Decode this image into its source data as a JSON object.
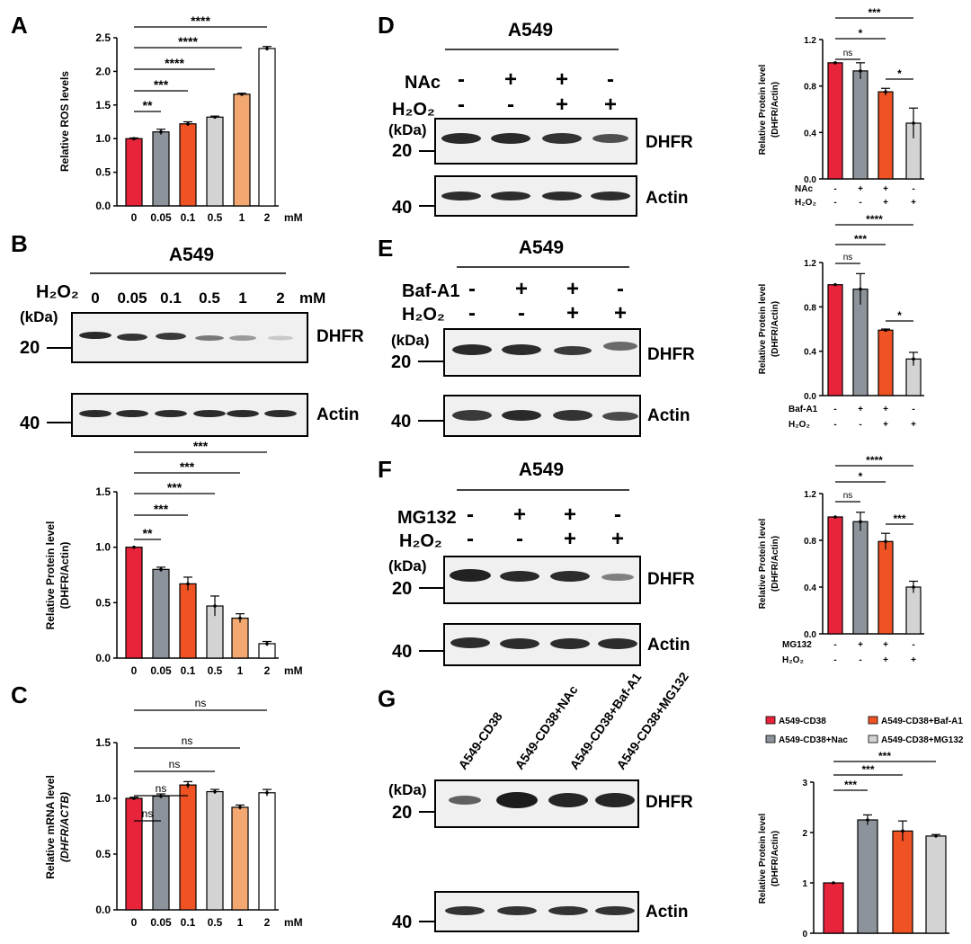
{
  "colors": {
    "red": "#e8243a",
    "gray": "#8d939b",
    "orange": "#ef5324",
    "light": "#d3d3d3",
    "peach": "#f3a872",
    "white": "#ffffff"
  },
  "panels": {
    "A": {
      "label": "A"
    },
    "B": {
      "label": "B",
      "cell": "A549",
      "treatment": "H₂O₂",
      "lanes": [
        "0",
        "0.05",
        "0.1",
        "0.5",
        "1",
        "2"
      ],
      "unit": "mM",
      "kda": "(kDa)",
      "mw_top": "20",
      "mw_bottom": "40",
      "protein_top": "DHFR",
      "protein_bottom": "Actin"
    },
    "C": {
      "label": "C"
    },
    "D": {
      "label": "D",
      "cell": "A549",
      "row1": "NAc",
      "row2": "H₂O₂",
      "row1_signs": [
        "-",
        "+",
        "+",
        "-"
      ],
      "row2_signs": [
        "-",
        "-",
        "+",
        "+"
      ],
      "kda": "(kDa)",
      "mw_top": "20",
      "mw_bottom": "40",
      "protein_top": "DHFR",
      "protein_bottom": "Actin"
    },
    "E": {
      "label": "E",
      "cell": "A549",
      "row1": "Baf-A1",
      "row2": "H₂O₂",
      "row1_signs": [
        "-",
        "+",
        "+",
        "-"
      ],
      "row2_signs": [
        "-",
        "-",
        "+",
        "+"
      ],
      "kda": "(kDa)",
      "mw_top": "20",
      "mw_bottom": "40",
      "protein_top": "DHFR",
      "protein_bottom": "Actin"
    },
    "F": {
      "label": "F",
      "cell": "A549",
      "row1": "MG132",
      "row2": "H₂O₂",
      "row1_signs": [
        "-",
        "+",
        "+",
        "-"
      ],
      "row2_signs": [
        "-",
        "-",
        "+",
        "+"
      ],
      "kda": "(kDa)",
      "mw_top": "20",
      "mw_bottom": "40",
      "protein_top": "DHFR",
      "protein_bottom": "Actin"
    },
    "G": {
      "label": "G",
      "columns": [
        "A549-CD38",
        "A549-CD38+NAc",
        "A549-CD38+Baf-A1",
        "A549-CD38+MG132"
      ],
      "kda": "(kDa)",
      "mw_top": "20",
      "mw_bottom": "40",
      "protein_top": "DHFR",
      "protein_bottom": "Actin"
    }
  },
  "chart_data": [
    {
      "id": "A",
      "type": "bar",
      "ylabel": "Relative ROS levels",
      "categories": [
        "0",
        "0.05",
        "0.1",
        "0.5",
        "1",
        "2"
      ],
      "unit": "mM",
      "values": [
        1.0,
        1.1,
        1.22,
        1.32,
        1.66,
        2.34
      ],
      "errors": [
        0.01,
        0.04,
        0.03,
        0.015,
        0.015,
        0.03
      ],
      "colors": [
        "red",
        "gray",
        "orange",
        "light",
        "peach",
        "white"
      ],
      "ylim": [
        0,
        2.5
      ],
      "yticks": [
        "0.0",
        "0.5",
        "1.0",
        "1.5",
        "2.0",
        "2.5"
      ],
      "significance": [
        {
          "from": 0,
          "to": 1,
          "label": "**"
        },
        {
          "from": 0,
          "to": 2,
          "label": "***"
        },
        {
          "from": 0,
          "to": 3,
          "label": "****"
        },
        {
          "from": 0,
          "to": 4,
          "label": "****"
        },
        {
          "from": 0,
          "to": 5,
          "label": "****"
        }
      ]
    },
    {
      "id": "B",
      "type": "bar",
      "ylabel": "Relative Protein level",
      "ylabel2": "(DHFR/Actin)",
      "categories": [
        "0",
        "0.05",
        "0.1",
        "0.5",
        "1",
        "2"
      ],
      "unit": "mM",
      "values": [
        1.0,
        0.8,
        0.67,
        0.47,
        0.36,
        0.13
      ],
      "errors": [
        0.0,
        0.02,
        0.06,
        0.09,
        0.04,
        0.02
      ],
      "colors": [
        "red",
        "gray",
        "orange",
        "light",
        "peach",
        "white"
      ],
      "ylim": [
        0,
        1.5
      ],
      "yticks": [
        "0.0",
        "0.5",
        "1.0",
        "1.5"
      ],
      "significance": [
        {
          "from": 0,
          "to": 1,
          "label": "**"
        },
        {
          "from": 0,
          "to": 2,
          "label": "***"
        },
        {
          "from": 0,
          "to": 3,
          "label": "***"
        },
        {
          "from": 0,
          "to": 4,
          "label": "***"
        },
        {
          "from": 0,
          "to": 5,
          "label": "***"
        }
      ]
    },
    {
      "id": "C",
      "type": "bar",
      "ylabel": "Relative mRNA  level",
      "ylabel2": "(DHFR/ACTB)",
      "categories": [
        "0",
        "0.05",
        "0.1",
        "0.5",
        "1",
        "2"
      ],
      "unit": "mM",
      "values": [
        1.0,
        1.02,
        1.12,
        1.06,
        0.92,
        1.05
      ],
      "errors": [
        0.01,
        0.02,
        0.03,
        0.02,
        0.02,
        0.03
      ],
      "colors": [
        "red",
        "gray",
        "orange",
        "light",
        "peach",
        "white"
      ],
      "ylim": [
        0,
        1.5
      ],
      "yticks": [
        "0.0",
        "0.5",
        "1.0",
        "1.5"
      ],
      "significance": [
        {
          "from": 0,
          "to": 1,
          "label": "ns"
        },
        {
          "from": 0,
          "to": 2,
          "label": "ns"
        },
        {
          "from": 0,
          "to": 3,
          "label": "ns"
        },
        {
          "from": 0,
          "to": 4,
          "label": "ns"
        },
        {
          "from": 0,
          "to": 5,
          "label": "ns"
        }
      ]
    },
    {
      "id": "D",
      "type": "bar",
      "ylabel": "Relative Protein level",
      "ylabel2": "(DHFR/Actin)",
      "values": [
        1.0,
        0.93,
        0.75,
        0.48
      ],
      "errors": [
        0.0,
        0.07,
        0.03,
        0.13
      ],
      "colors": [
        "red",
        "gray",
        "orange",
        "light"
      ],
      "ylim": [
        0,
        1.2
      ],
      "yticks": [
        "0.0",
        "0.4",
        "0.8",
        "1.2"
      ],
      "conditions": [
        {
          "name": "NAc",
          "signs": [
            "-",
            "+",
            "+",
            "-"
          ]
        },
        {
          "name": "H₂O₂",
          "signs": [
            "-",
            "-",
            "+",
            "+"
          ]
        }
      ],
      "significance": [
        {
          "from": 0,
          "to": 1,
          "label": "ns"
        },
        {
          "from": 0,
          "to": 2,
          "label": "*"
        },
        {
          "from": 0,
          "to": 3,
          "label": "***"
        },
        {
          "from": 2,
          "to": 3,
          "label": "*"
        }
      ]
    },
    {
      "id": "E",
      "type": "bar",
      "ylabel": "Relative Protein level",
      "ylabel2": "(DHFR/Actin)",
      "values": [
        1.0,
        0.96,
        0.59,
        0.33
      ],
      "errors": [
        0.0,
        0.14,
        0.01,
        0.06
      ],
      "colors": [
        "red",
        "gray",
        "orange",
        "light"
      ],
      "ylim": [
        0,
        1.2
      ],
      "yticks": [
        "0.0",
        "0.4",
        "0.8",
        "1.2"
      ],
      "conditions": [
        {
          "name": "Baf-A1",
          "signs": [
            "-",
            "+",
            "+",
            "-"
          ]
        },
        {
          "name": "H₂O₂",
          "signs": [
            "-",
            "-",
            "+",
            "+"
          ]
        }
      ],
      "significance": [
        {
          "from": 0,
          "to": 1,
          "label": "ns"
        },
        {
          "from": 0,
          "to": 2,
          "label": "***"
        },
        {
          "from": 0,
          "to": 3,
          "label": "****"
        },
        {
          "from": 2,
          "to": 3,
          "label": "*"
        }
      ]
    },
    {
      "id": "F",
      "type": "bar",
      "ylabel": "Relative Protein level",
      "ylabel2": "(DHFR/Actin)",
      "values": [
        1.0,
        0.96,
        0.79,
        0.4
      ],
      "errors": [
        0.0,
        0.08,
        0.07,
        0.05
      ],
      "colors": [
        "red",
        "gray",
        "orange",
        "light"
      ],
      "ylim": [
        0,
        1.2
      ],
      "yticks": [
        "0.0",
        "0.4",
        "0.8",
        "1.2"
      ],
      "conditions": [
        {
          "name": "MG132",
          "signs": [
            "-",
            "+",
            "+",
            "-"
          ]
        },
        {
          "name": "H₂O₂",
          "signs": [
            "-",
            "-",
            "+",
            "+"
          ]
        }
      ],
      "significance": [
        {
          "from": 0,
          "to": 1,
          "label": "ns"
        },
        {
          "from": 0,
          "to": 2,
          "label": "*"
        },
        {
          "from": 0,
          "to": 3,
          "label": "****"
        },
        {
          "from": 2,
          "to": 3,
          "label": "***"
        }
      ]
    },
    {
      "id": "G",
      "type": "bar",
      "ylabel": "Relative Protein level",
      "ylabel2": "(DHFR/Actin)",
      "values": [
        1.0,
        2.25,
        2.03,
        1.93
      ],
      "errors": [
        0.0,
        0.1,
        0.2,
        0.03
      ],
      "colors": [
        "red",
        "gray",
        "orange",
        "light"
      ],
      "ylim": [
        0,
        3
      ],
      "yticks": [
        "0",
        "1",
        "2",
        "3"
      ],
      "legend": [
        "A549-CD38",
        "A549-CD38+Baf-A1",
        "A549-CD38+Nac",
        "A549-CD38+MG132"
      ],
      "legend_colors": [
        "red",
        "orange",
        "gray",
        "light"
      ],
      "significance": [
        {
          "from": 0,
          "to": 1,
          "label": "***"
        },
        {
          "from": 0,
          "to": 2,
          "label": "***"
        },
        {
          "from": 0,
          "to": 3,
          "label": "***"
        }
      ]
    }
  ]
}
